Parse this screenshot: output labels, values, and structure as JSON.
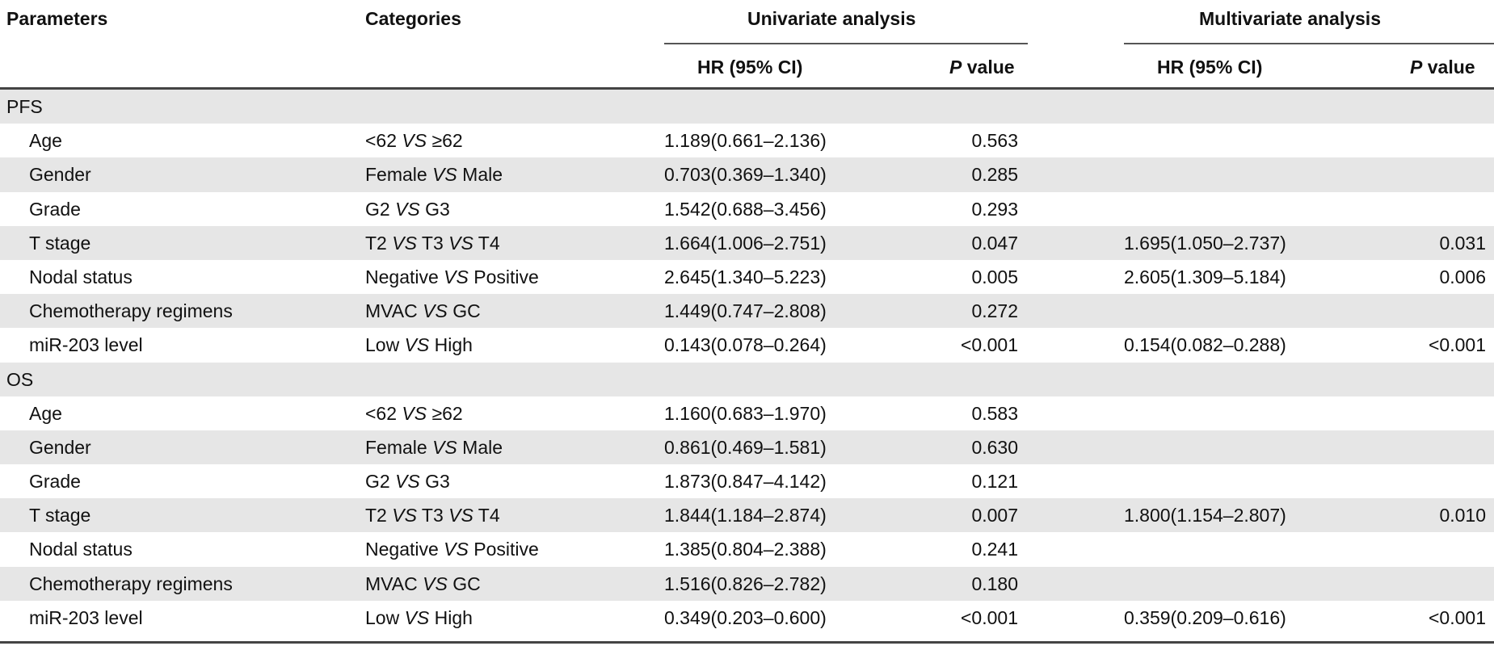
{
  "header": {
    "parameters": "Parameters",
    "categories": "Categories",
    "univariate": "Univariate analysis",
    "multivariate": "Multivariate analysis",
    "uni_hr": "HR (95% CI)",
    "uni_p_italic": "P",
    "uni_p_rest": " value",
    "multi_hr": "HR (95% CI)",
    "multi_p_italic": "P",
    "multi_p_rest": " value"
  },
  "rows": [
    {
      "section": "PFS"
    },
    {
      "param": "Age",
      "cat": [
        "<62 ",
        "VS",
        " ≥62"
      ],
      "uhr": "1.189(0.661–2.136)",
      "up": "0.563",
      "mhr": "",
      "mp": ""
    },
    {
      "param": "Gender",
      "cat": [
        "Female ",
        "VS",
        " Male"
      ],
      "uhr": "0.703(0.369–1.340)",
      "up": "0.285",
      "mhr": "",
      "mp": ""
    },
    {
      "param": "Grade",
      "cat": [
        "G2 ",
        "VS",
        " G3"
      ],
      "uhr": "1.542(0.688–3.456)",
      "up": "0.293",
      "mhr": "",
      "mp": ""
    },
    {
      "param": "T stage",
      "cat": [
        "T2 ",
        "VS",
        " T3 ",
        "VS",
        " T4"
      ],
      "uhr": "1.664(1.006–2.751)",
      "up": "0.047",
      "mhr": "1.695(1.050–2.737)",
      "mp": "0.031"
    },
    {
      "param": "Nodal status",
      "cat": [
        "Negative ",
        "VS",
        " Positive"
      ],
      "uhr": "2.645(1.340–5.223)",
      "up": "0.005",
      "mhr": "2.605(1.309–5.184)",
      "mp": "0.006"
    },
    {
      "param": "Chemotherapy regimens",
      "cat": [
        "MVAC ",
        "VS",
        " GC"
      ],
      "uhr": "1.449(0.747–2.808)",
      "up": "0.272",
      "mhr": "",
      "mp": ""
    },
    {
      "param": "miR-203 level",
      "cat": [
        "Low ",
        "VS",
        " High"
      ],
      "uhr": "0.143(0.078–0.264)",
      "up": "<0.001",
      "mhr": "0.154(0.082–0.288)",
      "mp": "<0.001"
    },
    {
      "section": "OS"
    },
    {
      "param": "Age",
      "cat": [
        "<62 ",
        "VS",
        " ≥62"
      ],
      "uhr": "1.160(0.683–1.970)",
      "up": "0.583",
      "mhr": "",
      "mp": ""
    },
    {
      "param": "Gender",
      "cat": [
        "Female ",
        "VS",
        " Male"
      ],
      "uhr": "0.861(0.469–1.581)",
      "up": "0.630",
      "mhr": "",
      "mp": ""
    },
    {
      "param": "Grade",
      "cat": [
        "G2 ",
        "VS",
        " G3"
      ],
      "uhr": "1.873(0.847–4.142)",
      "up": "0.121",
      "mhr": "",
      "mp": ""
    },
    {
      "param": "T stage",
      "cat": [
        "T2 ",
        "VS",
        " T3 ",
        "VS",
        " T4"
      ],
      "uhr": "1.844(1.184–2.874)",
      "up": "0.007",
      "mhr": "1.800(1.154–2.807)",
      "mp": "0.010"
    },
    {
      "param": "Nodal status",
      "cat": [
        "Negative ",
        "VS",
        " Positive"
      ],
      "uhr": "1.385(0.804–2.388)",
      "up": "0.241",
      "mhr": "",
      "mp": ""
    },
    {
      "param": "Chemotherapy regimens",
      "cat": [
        "MVAC ",
        "VS",
        " GC"
      ],
      "uhr": "1.516(0.826–2.782)",
      "up": "0.180",
      "mhr": "",
      "mp": ""
    },
    {
      "param": "miR-203 level",
      "cat": [
        "Low ",
        "VS",
        " High"
      ],
      "uhr": "0.349(0.203–0.600)",
      "up": "<0.001",
      "mhr": "0.359(0.209–0.616)",
      "mp": "<0.001"
    }
  ]
}
